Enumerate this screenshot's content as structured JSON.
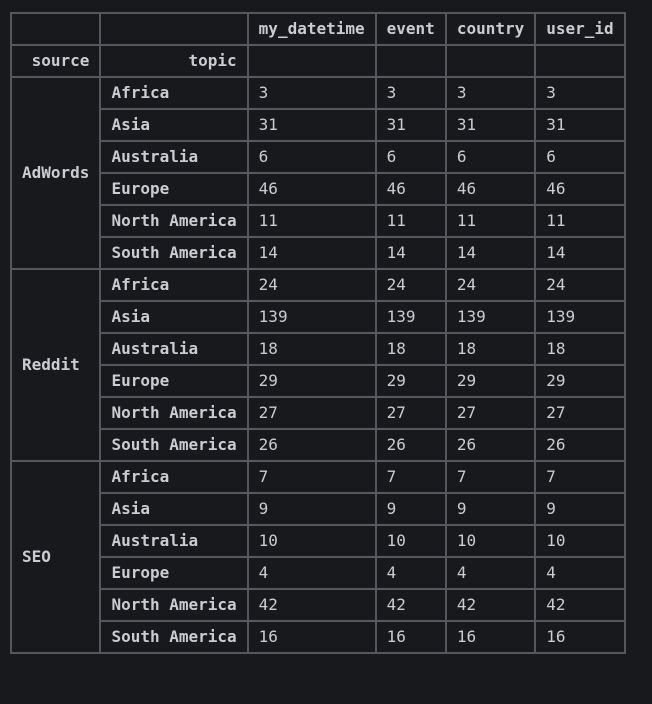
{
  "table": {
    "columns": [
      "my_datetime",
      "event",
      "country",
      "user_id"
    ],
    "index_names": [
      "source",
      "topic"
    ],
    "groups": [
      {
        "source": "AdWords",
        "rows": [
          {
            "topic": "Africa",
            "values": [
              "3",
              "3",
              "3",
              "3"
            ]
          },
          {
            "topic": "Asia",
            "values": [
              "31",
              "31",
              "31",
              "31"
            ]
          },
          {
            "topic": "Australia",
            "values": [
              "6",
              "6",
              "6",
              "6"
            ]
          },
          {
            "topic": "Europe",
            "values": [
              "46",
              "46",
              "46",
              "46"
            ]
          },
          {
            "topic": "North America",
            "values": [
              "11",
              "11",
              "11",
              "11"
            ]
          },
          {
            "topic": "South America",
            "values": [
              "14",
              "14",
              "14",
              "14"
            ]
          }
        ]
      },
      {
        "source": "Reddit",
        "rows": [
          {
            "topic": "Africa",
            "values": [
              "24",
              "24",
              "24",
              "24"
            ]
          },
          {
            "topic": "Asia",
            "values": [
              "139",
              "139",
              "139",
              "139"
            ]
          },
          {
            "topic": "Australia",
            "values": [
              "18",
              "18",
              "18",
              "18"
            ]
          },
          {
            "topic": "Europe",
            "values": [
              "29",
              "29",
              "29",
              "29"
            ]
          },
          {
            "topic": "North America",
            "values": [
              "27",
              "27",
              "27",
              "27"
            ]
          },
          {
            "topic": "South America",
            "values": [
              "26",
              "26",
              "26",
              "26"
            ]
          }
        ]
      },
      {
        "source": "SEO",
        "rows": [
          {
            "topic": "Africa",
            "values": [
              "7",
              "7",
              "7",
              "7"
            ]
          },
          {
            "topic": "Asia",
            "values": [
              "9",
              "9",
              "9",
              "9"
            ]
          },
          {
            "topic": "Australia",
            "values": [
              "10",
              "10",
              "10",
              "10"
            ]
          },
          {
            "topic": "Europe",
            "values": [
              "4",
              "4",
              "4",
              "4"
            ]
          },
          {
            "topic": "North America",
            "values": [
              "42",
              "42",
              "42",
              "42"
            ]
          },
          {
            "topic": "South America",
            "values": [
              "16",
              "16",
              "16",
              "16"
            ]
          }
        ]
      }
    ]
  }
}
